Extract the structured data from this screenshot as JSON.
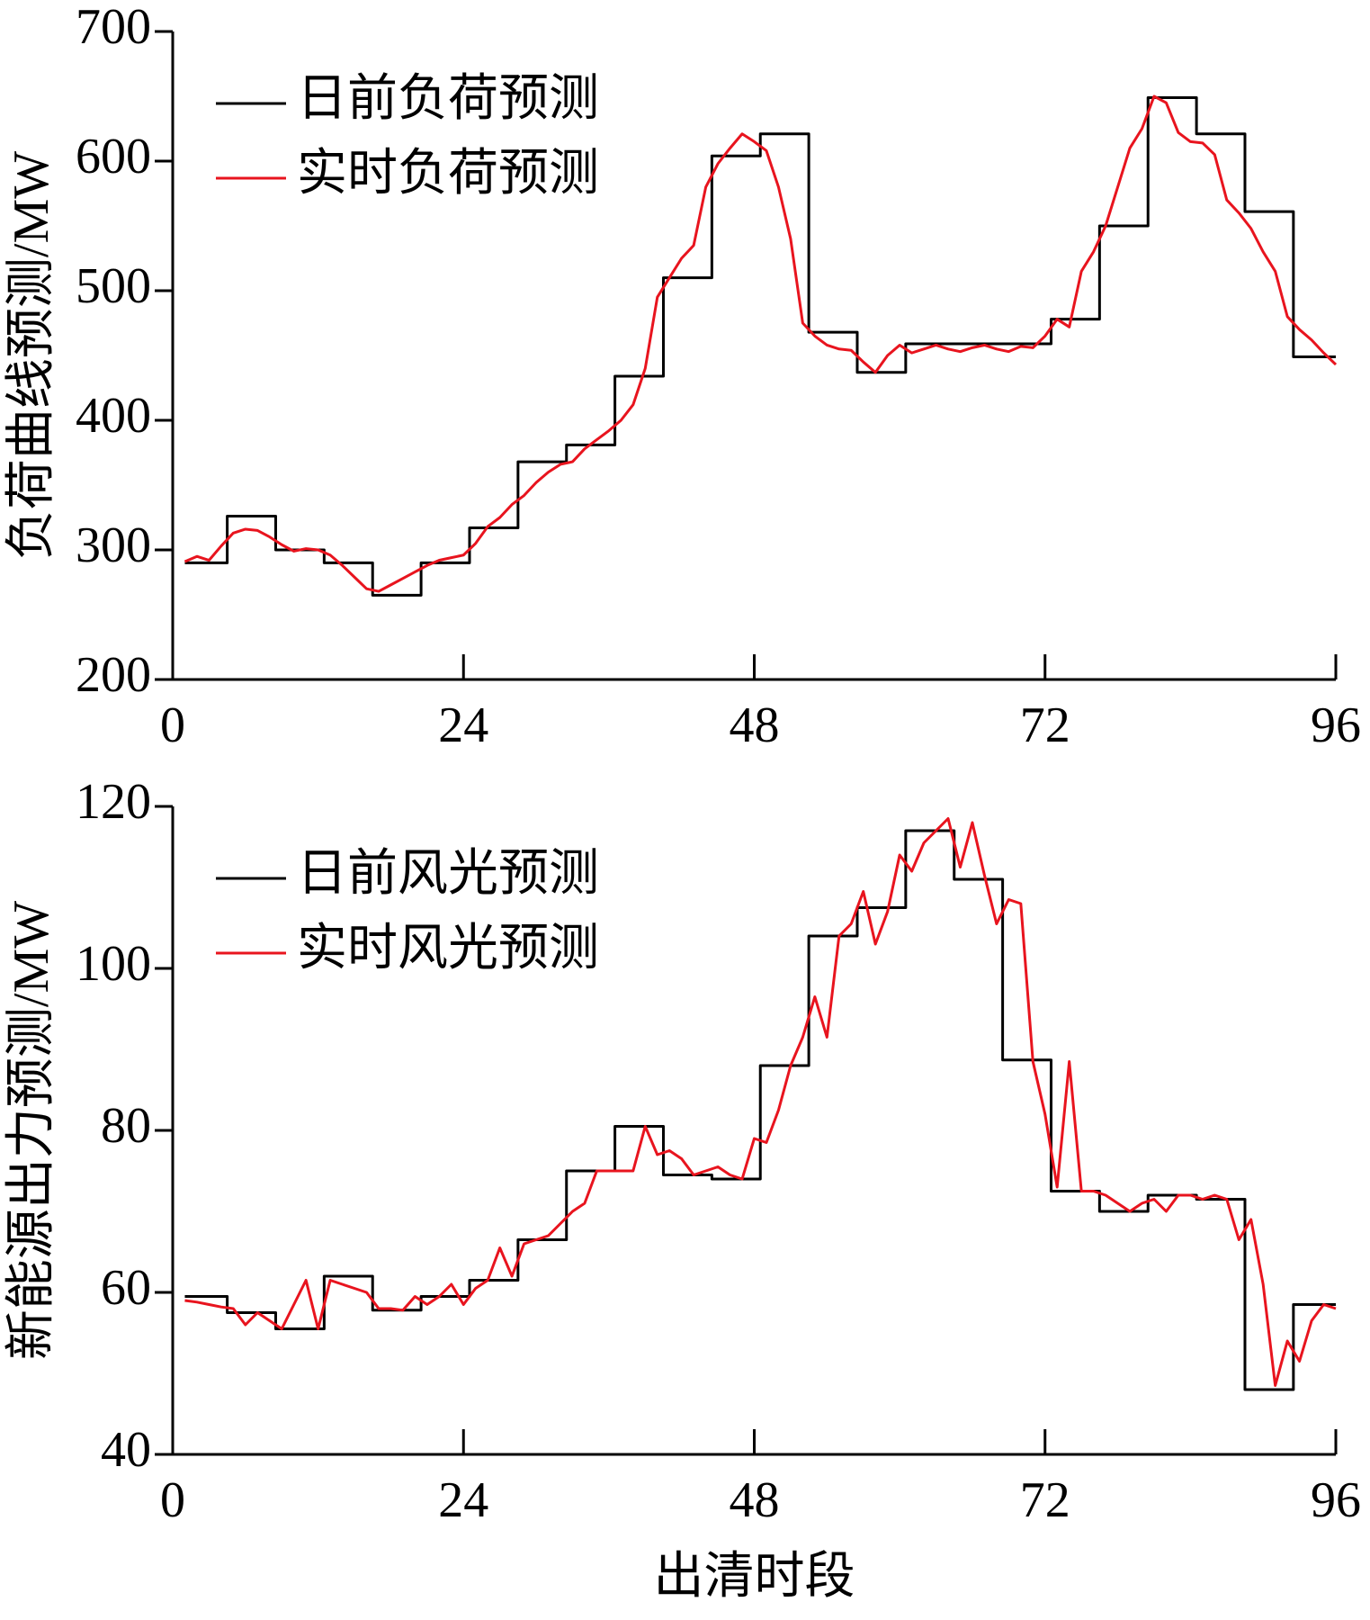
{
  "chart_data": [
    {
      "type": "line",
      "ylabel": "负荷曲线预测/MW",
      "x": [
        1,
        2,
        3,
        4,
        5,
        6,
        7,
        8,
        9,
        10,
        11,
        12,
        13,
        14,
        15,
        16,
        17,
        18,
        19,
        20,
        21,
        22,
        23,
        24,
        25,
        26,
        27,
        28,
        29,
        30,
        31,
        32,
        33,
        34,
        35,
        36,
        37,
        38,
        39,
        40,
        41,
        42,
        43,
        44,
        45,
        46,
        47,
        48,
        49,
        50,
        51,
        52,
        53,
        54,
        55,
        56,
        57,
        58,
        59,
        60,
        61,
        62,
        63,
        64,
        65,
        66,
        67,
        68,
        69,
        70,
        71,
        72,
        73,
        74,
        75,
        76,
        77,
        78,
        79,
        80,
        81,
        82,
        83,
        84,
        85,
        86,
        87,
        88,
        89,
        90,
        91,
        92,
        93,
        94,
        95,
        96
      ],
      "xlim": [
        0,
        96
      ],
      "xticks": [
        0,
        24,
        48,
        72,
        96
      ],
      "ylim": [
        200,
        700
      ],
      "yticks": [
        200,
        300,
        400,
        500,
        600,
        700
      ],
      "legend": "upper left",
      "series": [
        {
          "name": "日前负荷预测",
          "color": "#000000",
          "drawstyle": "steps-mid",
          "values": [
            290,
            290,
            290,
            290,
            326,
            326,
            326,
            326,
            300,
            300,
            300,
            300,
            290,
            290,
            290,
            290,
            265,
            265,
            265,
            265,
            290,
            290,
            290,
            290,
            317,
            317,
            317,
            317,
            368,
            368,
            368,
            368,
            381,
            381,
            381,
            381,
            434,
            434,
            434,
            434,
            510,
            510,
            510,
            510,
            604,
            604,
            604,
            604,
            621,
            621,
            621,
            621,
            468,
            468,
            468,
            468,
            437,
            437,
            437,
            437,
            459,
            459,
            459,
            459,
            459,
            459,
            459,
            459,
            459,
            459,
            459,
            459,
            478,
            478,
            478,
            478,
            550,
            550,
            550,
            550,
            649,
            649,
            649,
            649,
            621,
            621,
            621,
            621,
            561,
            561,
            561,
            561,
            449,
            449,
            449,
            449
          ]
        },
        {
          "name": "实时负荷预测",
          "color": "#e8141e",
          "drawstyle": "default",
          "values": [
            291,
            295,
            292,
            303,
            313,
            316,
            315,
            310,
            304,
            299,
            301,
            300,
            296,
            288,
            279,
            270,
            268,
            273,
            278,
            283,
            288,
            292,
            294,
            296,
            305,
            318,
            325,
            335,
            342,
            352,
            360,
            366,
            368,
            378,
            385,
            392,
            400,
            412,
            440,
            495,
            510,
            525,
            535,
            580,
            598,
            610,
            621,
            615,
            608,
            580,
            540,
            475,
            465,
            458,
            455,
            454,
            445,
            437,
            450,
            458,
            452,
            455,
            458,
            455,
            453,
            456,
            458,
            455,
            453,
            457,
            456,
            465,
            478,
            472,
            515,
            530,
            550,
            580,
            610,
            625,
            650,
            645,
            622,
            615,
            614,
            605,
            570,
            560,
            548,
            530,
            515,
            480,
            470,
            462,
            452,
            443
          ]
        }
      ]
    },
    {
      "type": "line",
      "ylabel": "新能源出力预测/MW",
      "xlabel": "出清时段",
      "x": [
        1,
        2,
        3,
        4,
        5,
        6,
        7,
        8,
        9,
        10,
        11,
        12,
        13,
        14,
        15,
        16,
        17,
        18,
        19,
        20,
        21,
        22,
        23,
        24,
        25,
        26,
        27,
        28,
        29,
        30,
        31,
        32,
        33,
        34,
        35,
        36,
        37,
        38,
        39,
        40,
        41,
        42,
        43,
        44,
        45,
        46,
        47,
        48,
        49,
        50,
        51,
        52,
        53,
        54,
        55,
        56,
        57,
        58,
        59,
        60,
        61,
        62,
        63,
        64,
        65,
        66,
        67,
        68,
        69,
        70,
        71,
        72,
        73,
        74,
        75,
        76,
        77,
        78,
        79,
        80,
        81,
        82,
        83,
        84,
        85,
        86,
        87,
        88,
        89,
        90,
        91,
        92,
        93,
        94,
        95,
        96
      ],
      "xlim": [
        0,
        96
      ],
      "xticks": [
        0,
        24,
        48,
        72,
        96
      ],
      "ylim": [
        40,
        120
      ],
      "yticks": [
        40,
        60,
        80,
        100,
        120
      ],
      "legend": "upper left",
      "series": [
        {
          "name": "日前风光预测",
          "color": "#000000",
          "drawstyle": "steps-mid",
          "values": [
            59.5,
            59.5,
            59.5,
            59.5,
            57.5,
            57.5,
            57.5,
            57.5,
            55.5,
            55.5,
            55.5,
            55.5,
            62,
            62,
            62,
            62,
            57.8,
            57.8,
            57.8,
            57.8,
            59.5,
            59.5,
            59.5,
            59.5,
            61.5,
            61.5,
            61.5,
            61.5,
            66.5,
            66.5,
            66.5,
            66.5,
            75,
            75,
            75,
            75,
            80.5,
            80.5,
            80.5,
            80.5,
            74.5,
            74.5,
            74.5,
            74.5,
            74,
            74,
            74,
            74,
            88,
            88,
            88,
            88,
            104,
            104,
            104,
            104,
            107.5,
            107.5,
            107.5,
            107.5,
            117,
            117,
            117,
            117,
            111,
            111,
            111,
            111,
            88.7,
            88.7,
            88.7,
            88.7,
            72.5,
            72.5,
            72.5,
            72.5,
            70,
            70,
            70,
            70,
            72,
            72,
            72,
            72,
            71.5,
            71.5,
            71.5,
            71.5,
            48,
            48,
            48,
            48,
            58.5,
            58.5,
            58.5,
            58.5
          ]
        },
        {
          "name": "实时风光预测",
          "color": "#e8141e",
          "drawstyle": "default",
          "values": [
            59,
            58.8,
            58.5,
            58.2,
            58,
            56,
            57.5,
            56.5,
            55.5,
            58.5,
            61.5,
            55.5,
            61.5,
            61,
            60.5,
            60,
            58,
            58,
            57.8,
            59.5,
            58.5,
            59.5,
            61,
            58.5,
            60.5,
            61.5,
            65.5,
            62,
            66,
            66.5,
            67,
            68.5,
            70,
            71,
            75,
            75,
            75,
            75,
            80.5,
            77,
            77.5,
            76.5,
            74.5,
            75,
            75.5,
            74.5,
            74,
            79,
            78.5,
            82.5,
            88,
            91.5,
            96.5,
            91.5,
            104,
            105.5,
            109.5,
            103,
            107,
            114,
            112,
            115.5,
            117,
            118.5,
            112.5,
            118,
            111.5,
            105.5,
            108.5,
            108,
            88.5,
            82,
            73,
            88.5,
            72.5,
            72.5,
            72,
            71,
            70,
            71,
            71.5,
            70,
            72,
            72,
            71.5,
            72,
            71.5,
            66.5,
            69,
            61,
            48.5,
            54,
            51.5,
            56.5,
            58.5,
            58
          ]
        }
      ]
    }
  ]
}
